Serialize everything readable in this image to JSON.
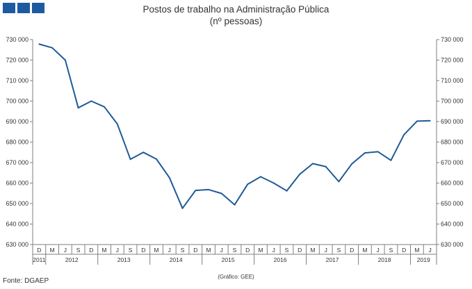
{
  "logo": {
    "color": "#1f5aa0"
  },
  "chart_data": {
    "type": "line",
    "title": "Postos de trabalho na Administração Pública",
    "subtitle": "(nº pessoas)",
    "xlabel": "",
    "ylabel": "",
    "ylim": [
      630000,
      730000
    ],
    "y_ticks": [
      "630 000",
      "640 000",
      "650 000",
      "660 000",
      "670 000",
      "680 000",
      "690 000",
      "700 000",
      "710 000",
      "720 000",
      "730 000"
    ],
    "y_axis_sides": [
      "left",
      "right"
    ],
    "grid": false,
    "legend": "none",
    "line_color": "#1f5a96",
    "x": [
      "D",
      "M",
      "J",
      "S",
      "D",
      "M",
      "J",
      "S",
      "D",
      "M",
      "J",
      "S",
      "D",
      "M",
      "J",
      "S",
      "D",
      "M",
      "J",
      "S",
      "D",
      "M",
      "J",
      "S",
      "D",
      "M",
      "J",
      "S",
      "D",
      "M",
      "J"
    ],
    "x_periods": [
      "2011-12",
      "2012-03",
      "2012-06",
      "2012-09",
      "2012-12",
      "2013-03",
      "2013-06",
      "2013-09",
      "2013-12",
      "2014-03",
      "2014-06",
      "2014-09",
      "2014-12",
      "2015-03",
      "2015-06",
      "2015-09",
      "2015-12",
      "2016-03",
      "2016-06",
      "2016-09",
      "2016-12",
      "2017-03",
      "2017-06",
      "2017-09",
      "2017-12",
      "2018-03",
      "2018-06",
      "2018-09",
      "2018-12",
      "2019-03",
      "2019-06"
    ],
    "year_groups": [
      {
        "label": "2011",
        "start": 0,
        "count": 1
      },
      {
        "label": "2012",
        "start": 1,
        "count": 4
      },
      {
        "label": "2013",
        "start": 5,
        "count": 4
      },
      {
        "label": "2014",
        "start": 9,
        "count": 4
      },
      {
        "label": "2015",
        "start": 13,
        "count": 4
      },
      {
        "label": "2016",
        "start": 17,
        "count": 4
      },
      {
        "label": "2017",
        "start": 21,
        "count": 4
      },
      {
        "label": "2018",
        "start": 25,
        "count": 4
      },
      {
        "label": "2019",
        "start": 29,
        "count": 2
      }
    ],
    "values": [
      727800,
      726000,
      720000,
      696700,
      700000,
      697200,
      688800,
      671600,
      675000,
      671700,
      662600,
      647700,
      656400,
      656800,
      654900,
      649400,
      659400,
      663100,
      660000,
      656200,
      664300,
      669500,
      668000,
      660700,
      669400,
      674700,
      675300,
      671100,
      683600,
      690200,
      690400
    ]
  },
  "footer": {
    "source": "Fonte: DGAEP",
    "credit": "(Gráfico: GEE)"
  }
}
